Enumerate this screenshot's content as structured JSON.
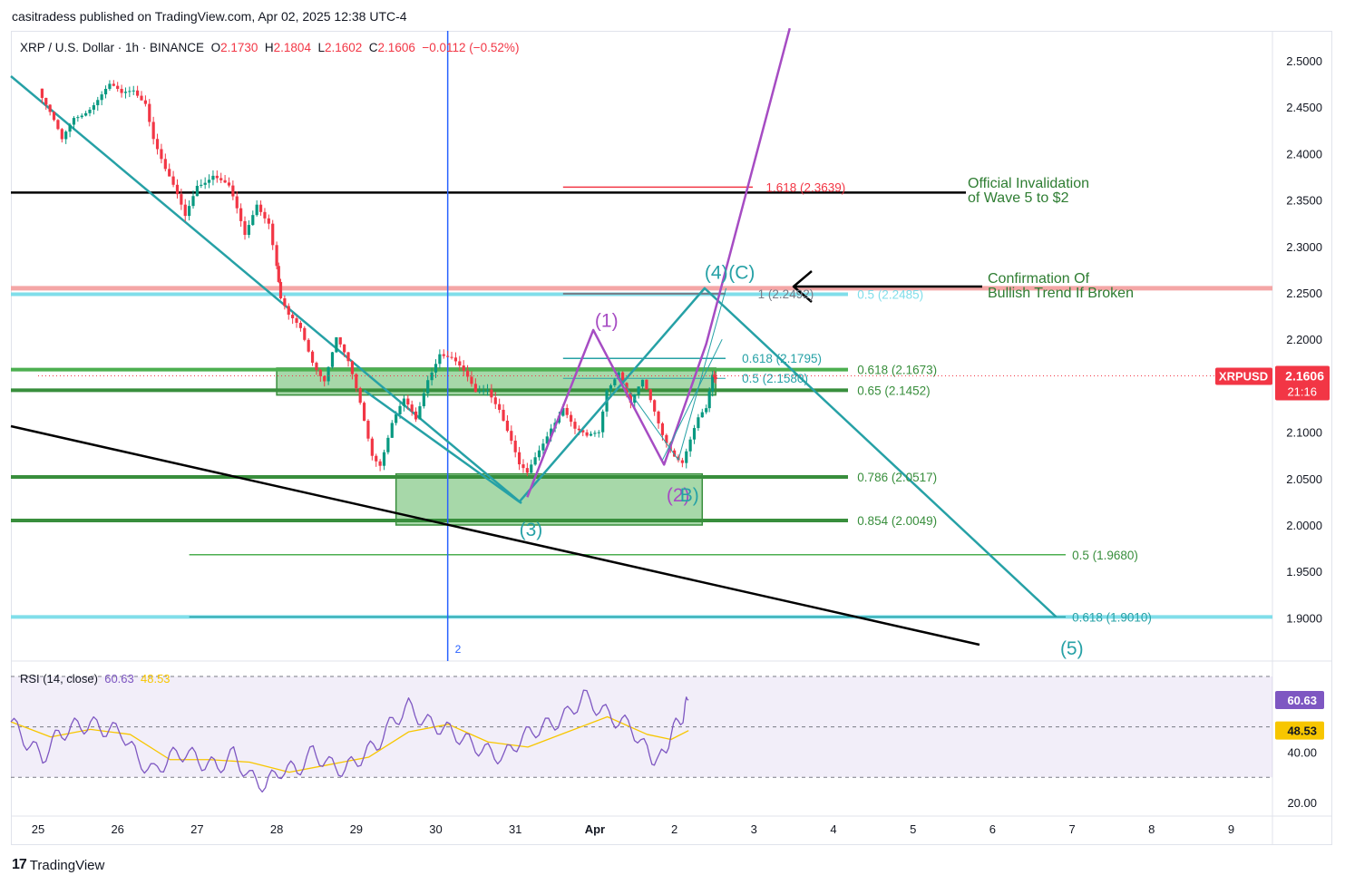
{
  "header": {
    "publisher_line": "casitradess published on TradingView.com, Apr 02, 2025 12:38 UTC-4"
  },
  "legend": {
    "symbol": "XRP / U.S. Dollar · 1h · BINANCE",
    "o_label": "O",
    "o": "2.1730",
    "h_label": "H",
    "h": "2.1804",
    "l_label": "L",
    "l": "2.1602",
    "c_label": "C",
    "c": "2.1606",
    "change": "−0.0112 (−0.52%)"
  },
  "rsi_legend": {
    "label": "RSI (14, close)",
    "rsi": "60.63",
    "ma": "48.53"
  },
  "footer": {
    "brand": "TradingView",
    "logo": "17"
  },
  "colors": {
    "up": "#089981",
    "down": "#f23645",
    "teal": "#26a1a6",
    "purple": "#a64cc3",
    "green_zone": "#81c784",
    "dark_green": "#388e3c",
    "light_blue": "#80deea",
    "pink": "#f4a6a6",
    "blue_vline": "#2962ff",
    "rsi": "#7e57c2",
    "rsi_ma": "#f7c600"
  },
  "annotations": {
    "invalidation": [
      "Official Invalidation",
      "of Wave 5 to $2"
    ],
    "confirmation": [
      "Confirmation Of",
      "Bullish Trend If Broken"
    ]
  },
  "chart_data": {
    "type": "candlestick",
    "symbol": "XRPUSD",
    "interval": "1h",
    "exchange": "BINANCE",
    "price_axis": {
      "min": 1.85,
      "max": 2.52,
      "ticks": [
        "2.5000",
        "2.4500",
        "2.4000",
        "2.3500",
        "2.3000",
        "2.2500",
        "2.2000",
        "2.1500",
        "2.1000",
        "2.0500",
        "2.0000",
        "1.9500",
        "1.9000"
      ]
    },
    "x_axis": {
      "labels": [
        "25",
        "26",
        "27",
        "28",
        "29",
        "30",
        "31",
        "Apr",
        "2",
        "3",
        "4",
        "5",
        "6",
        "7",
        "8",
        "9"
      ],
      "label_index": [
        0,
        1,
        2,
        3,
        4,
        5,
        6,
        7,
        8,
        9,
        10,
        11,
        12,
        13,
        14,
        15
      ]
    },
    "last_price": {
      "symbol_label": "XRPUSD",
      "value": "2.1606",
      "countdown": "21:16"
    },
    "price_path": [
      [
        0.0,
        2.47
      ],
      [
        0.15,
        2.44
      ],
      [
        0.3,
        2.41
      ],
      [
        0.45,
        2.44
      ],
      [
        0.6,
        2.45
      ],
      [
        0.75,
        2.46
      ],
      [
        0.9,
        2.47
      ],
      [
        1.05,
        2.46
      ],
      [
        1.2,
        2.47
      ],
      [
        1.35,
        2.46
      ],
      [
        1.45,
        2.42
      ],
      [
        1.6,
        2.38
      ],
      [
        1.75,
        2.35
      ],
      [
        1.85,
        2.33
      ],
      [
        2.0,
        2.37
      ],
      [
        2.2,
        2.38
      ],
      [
        2.4,
        2.36
      ],
      [
        2.6,
        2.31
      ],
      [
        2.75,
        2.35
      ],
      [
        2.9,
        2.33
      ],
      [
        3.0,
        2.28
      ],
      [
        3.05,
        2.24
      ],
      [
        3.15,
        2.22
      ],
      [
        3.3,
        2.21
      ],
      [
        3.45,
        2.18
      ],
      [
        3.6,
        2.16
      ],
      [
        3.75,
        2.2
      ],
      [
        3.9,
        2.17
      ],
      [
        4.05,
        2.13
      ],
      [
        4.2,
        2.08
      ],
      [
        4.3,
        2.07
      ],
      [
        4.45,
        2.11
      ],
      [
        4.6,
        2.13
      ],
      [
        4.75,
        2.11
      ],
      [
        4.9,
        2.16
      ],
      [
        5.05,
        2.19
      ],
      [
        5.2,
        2.18
      ],
      [
        5.35,
        2.16
      ],
      [
        5.5,
        2.14
      ],
      [
        5.65,
        2.15
      ],
      [
        5.8,
        2.13
      ],
      [
        5.95,
        2.09
      ],
      [
        6.05,
        2.06
      ],
      [
        6.15,
        2.05
      ],
      [
        6.3,
        2.08
      ],
      [
        6.45,
        2.11
      ],
      [
        6.6,
        2.13
      ],
      [
        6.75,
        2.1
      ],
      [
        6.9,
        2.09
      ],
      [
        7.05,
        2.1
      ],
      [
        7.15,
        2.15
      ],
      [
        7.3,
        2.17
      ],
      [
        7.45,
        2.13
      ],
      [
        7.6,
        2.15
      ],
      [
        7.75,
        2.12
      ],
      [
        7.85,
        2.1
      ],
      [
        8.0,
        2.08
      ],
      [
        8.1,
        2.07
      ],
      [
        8.2,
        2.09
      ],
      [
        8.3,
        2.11
      ],
      [
        8.4,
        2.12
      ],
      [
        8.48,
        2.16
      ],
      [
        8.52,
        2.1606
      ]
    ],
    "rsi": {
      "axis_ticks": [
        "60.63",
        "48.53",
        "40.00",
        "20.00"
      ],
      "bands": {
        "upper": 70,
        "middle": 50,
        "lower": 30
      },
      "values_path": [
        [
          0.0,
          52
        ],
        [
          0.2,
          44
        ],
        [
          0.4,
          38
        ],
        [
          0.6,
          47
        ],
        [
          0.8,
          50
        ],
        [
          1.0,
          51
        ],
        [
          1.2,
          49
        ],
        [
          1.4,
          48
        ],
        [
          1.6,
          37
        ],
        [
          1.8,
          32
        ],
        [
          2.0,
          38
        ],
        [
          2.2,
          40
        ],
        [
          2.4,
          36
        ],
        [
          2.6,
          34
        ],
        [
          2.8,
          39
        ],
        [
          3.0,
          30
        ],
        [
          3.2,
          27
        ],
        [
          3.4,
          33
        ],
        [
          3.6,
          33
        ],
        [
          3.8,
          40
        ],
        [
          4.0,
          35
        ],
        [
          4.2,
          33
        ],
        [
          4.4,
          38
        ],
        [
          4.6,
          43
        ],
        [
          4.8,
          52
        ],
        [
          5.0,
          58
        ],
        [
          5.2,
          52
        ],
        [
          5.4,
          50
        ],
        [
          5.6,
          47
        ],
        [
          5.8,
          43
        ],
        [
          6.0,
          40
        ],
        [
          6.2,
          38
        ],
        [
          6.4,
          45
        ],
        [
          6.6,
          49
        ],
        [
          6.8,
          51
        ],
        [
          7.0,
          55
        ],
        [
          7.2,
          62
        ],
        [
          7.4,
          57
        ],
        [
          7.6,
          53
        ],
        [
          7.8,
          50
        ],
        [
          8.0,
          40
        ],
        [
          8.15,
          36
        ],
        [
          8.3,
          47
        ],
        [
          8.45,
          55
        ],
        [
          8.52,
          60.63
        ]
      ],
      "ma_path": [
        [
          0.0,
          52
        ],
        [
          0.5,
          46
        ],
        [
          1.0,
          49
        ],
        [
          1.5,
          47
        ],
        [
          2.0,
          37
        ],
        [
          2.5,
          37
        ],
        [
          3.0,
          36
        ],
        [
          3.5,
          32
        ],
        [
          4.0,
          35
        ],
        [
          4.5,
          38
        ],
        [
          5.0,
          48
        ],
        [
          5.5,
          51
        ],
        [
          6.0,
          44
        ],
        [
          6.5,
          42
        ],
        [
          7.0,
          48
        ],
        [
          7.5,
          54
        ],
        [
          8.0,
          47
        ],
        [
          8.3,
          45
        ],
        [
          8.52,
          48.53
        ]
      ]
    },
    "fib_labels": [
      {
        "text": "1.618 (2.3639)",
        "price": 2.3639,
        "x": 9.15,
        "color": "#f23645"
      },
      {
        "text": "1 (2.2492)",
        "price": 2.2492,
        "x": 9.05,
        "color": "#787b86"
      },
      {
        "text": "0.5 (2.2485)",
        "price": 2.2485,
        "x": 10.3,
        "color": "#80deea"
      },
      {
        "text": "0.618 (2.1795)",
        "price": 2.1795,
        "x": 8.85,
        "color": "#26a1a6"
      },
      {
        "text": "0.5 (2.1580)",
        "price": 2.158,
        "x": 8.85,
        "color": "#26a1a6"
      },
      {
        "text": "0.618 (2.1673)",
        "price": 2.1673,
        "x": 10.3,
        "color": "#388e3c"
      },
      {
        "text": "0.65 (2.1452)",
        "price": 2.1452,
        "x": 10.3,
        "color": "#388e3c"
      },
      {
        "text": "0.786 (2.0517)",
        "price": 2.0517,
        "x": 10.3,
        "color": "#388e3c"
      },
      {
        "text": "0.854 (2.0049)",
        "price": 2.0049,
        "x": 10.3,
        "color": "#388e3c"
      },
      {
        "text": "0.5 (1.9680)",
        "price": 1.968,
        "x": 13.0,
        "color": "#388e3c"
      },
      {
        "text": "0.618 (1.9010)",
        "price": 1.901,
        "x": 13.0,
        "color": "#26a1a6"
      }
    ],
    "wave_labels": [
      {
        "text": "(3)",
        "x": 6.05,
        "price": 1.995,
        "color": "#26a1a6"
      },
      {
        "text": "(4)",
        "x": 8.38,
        "price": 2.272,
        "color": "#26a1a6"
      },
      {
        "text": "(C)",
        "x": 8.68,
        "price": 2.272,
        "color": "#26a1a6"
      },
      {
        "text": "(5)",
        "x": 12.85,
        "price": 1.867,
        "color": "#26a1a6"
      },
      {
        "text": "(1)",
        "x": 7.0,
        "price": 2.22,
        "color": "#a64cc3"
      },
      {
        "text": "(2)",
        "x": 7.9,
        "price": 2.032,
        "color": "#a64cc3"
      },
      {
        "text": "B)",
        "x": 8.07,
        "price": 2.032,
        "color": "#26a1a6"
      }
    ],
    "marker": {
      "text": "2",
      "x": 5.15
    }
  }
}
